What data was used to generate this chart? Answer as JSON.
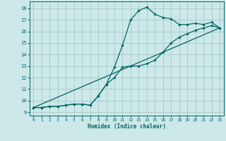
{
  "xlabel": "Humidex (Indice chaleur)",
  "bg_color": "#cce8e8",
  "grid_color": "#aacccc",
  "line_color": "#006666",
  "xlim": [
    -0.5,
    23.5
  ],
  "ylim": [
    8.7,
    18.6
  ],
  "xticks": [
    0,
    1,
    2,
    3,
    4,
    5,
    6,
    7,
    8,
    9,
    10,
    11,
    12,
    13,
    14,
    15,
    16,
    17,
    18,
    19,
    20,
    21,
    22,
    23
  ],
  "yticks": [
    9,
    10,
    11,
    12,
    13,
    14,
    15,
    16,
    17,
    18
  ],
  "line1_x": [
    0,
    1,
    2,
    3,
    4,
    5,
    6,
    7,
    8,
    9,
    10,
    11,
    12,
    13,
    14,
    15,
    16,
    17,
    18,
    19,
    20,
    21,
    22,
    23
  ],
  "line1_y": [
    9.4,
    9.4,
    9.5,
    9.5,
    9.6,
    9.7,
    9.7,
    9.6,
    10.4,
    11.4,
    12.9,
    14.8,
    17.0,
    17.8,
    18.1,
    17.5,
    17.2,
    17.1,
    16.6,
    16.6,
    16.7,
    16.6,
    16.8,
    16.3
  ],
  "line2_x": [
    0,
    1,
    2,
    3,
    4,
    5,
    6,
    7,
    8,
    9,
    10,
    11,
    12,
    13,
    14,
    15,
    16,
    17,
    18,
    19,
    20,
    21,
    22,
    23
  ],
  "line2_y": [
    9.4,
    9.4,
    9.5,
    9.5,
    9.6,
    9.7,
    9.7,
    9.6,
    10.4,
    11.4,
    12.0,
    12.9,
    13.0,
    13.0,
    13.2,
    13.5,
    14.2,
    15.0,
    15.5,
    15.8,
    16.1,
    16.3,
    16.5,
    16.3
  ],
  "line3_x": [
    0,
    23
  ],
  "line3_y": [
    9.4,
    16.3
  ]
}
